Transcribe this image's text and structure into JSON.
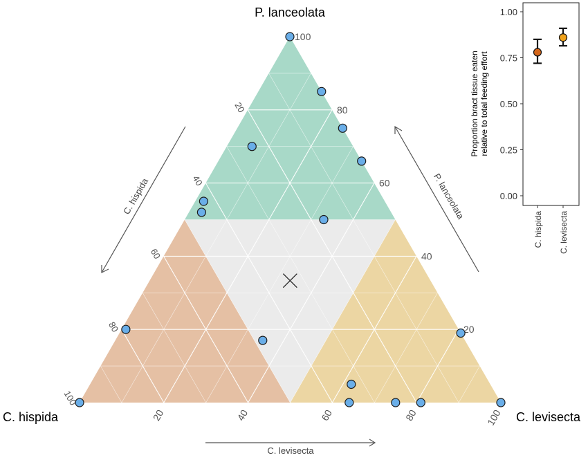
{
  "chart_data": [
    {
      "type": "scatter",
      "subtype": "ternary",
      "corner_labels": {
        "top": "P. lanceolata",
        "left": "C. hispida",
        "right": "C. levisecta"
      },
      "axis_labels": {
        "left": "C. hispida",
        "right": "P. lanceolata",
        "bottom": "C. levisecta"
      },
      "ticks": {
        "left": [
          "20",
          "40",
          "60",
          "80",
          "100"
        ],
        "right": [
          "20",
          "40",
          "60",
          "80",
          "100"
        ],
        "bottom": [
          "20",
          "40",
          "60",
          "80",
          "100"
        ]
      },
      "regions": [
        {
          "name": "P. lanceolata dominant",
          "color": "#a8d9c8"
        },
        {
          "name": "C. hispida dominant",
          "color": "#e5c0a4"
        },
        {
          "name": "C. levisecta dominant",
          "color": "#ecd6a3"
        },
        {
          "name": "mixed",
          "color": "#ebebeb"
        }
      ],
      "point_color": "#6aaee8",
      "points": [
        {
          "P": 100,
          "H": 0,
          "L": 0
        },
        {
          "P": 85,
          "H": 0,
          "L": 15
        },
        {
          "P": 75,
          "H": 0,
          "L": 25
        },
        {
          "P": 66,
          "H": 0,
          "L": 34
        },
        {
          "P": 70,
          "H": 24,
          "L": 6
        },
        {
          "P": 55,
          "H": 43,
          "L": 2
        },
        {
          "P": 52,
          "H": 45,
          "L": 3
        },
        {
          "P": 50,
          "H": 17,
          "L": 33
        },
        {
          "P": 20,
          "H": 79,
          "L": 1
        },
        {
          "P": 19,
          "H": 0,
          "L": 81
        },
        {
          "P": 17,
          "H": 48,
          "L": 35
        },
        {
          "P": 5,
          "H": 33,
          "L": 62
        },
        {
          "P": 0,
          "H": 36,
          "L": 64
        },
        {
          "P": 0,
          "H": 25,
          "L": 75
        },
        {
          "P": 0,
          "H": 19,
          "L": 81
        },
        {
          "P": 0,
          "H": 100,
          "L": 0
        },
        {
          "P": 0,
          "H": 0,
          "L": 100
        }
      ],
      "centroid": {
        "P": 33.3,
        "H": 33.3,
        "L": 33.3
      }
    },
    {
      "type": "errorbar",
      "ylabel_line1": "Proportion bract tissue eaten",
      "ylabel_line2": "relative to total feeding effort",
      "ylim": [
        0,
        1
      ],
      "yticks": [
        "0.00",
        "0.25",
        "0.50",
        "0.75",
        "1.00"
      ],
      "categories": [
        "C. hispida",
        "C. levisecta"
      ],
      "means": [
        0.78,
        0.86
      ],
      "lower": [
        0.72,
        0.815
      ],
      "upper": [
        0.85,
        0.91
      ],
      "colors": [
        "#d4661a",
        "#f0a21b"
      ]
    }
  ]
}
